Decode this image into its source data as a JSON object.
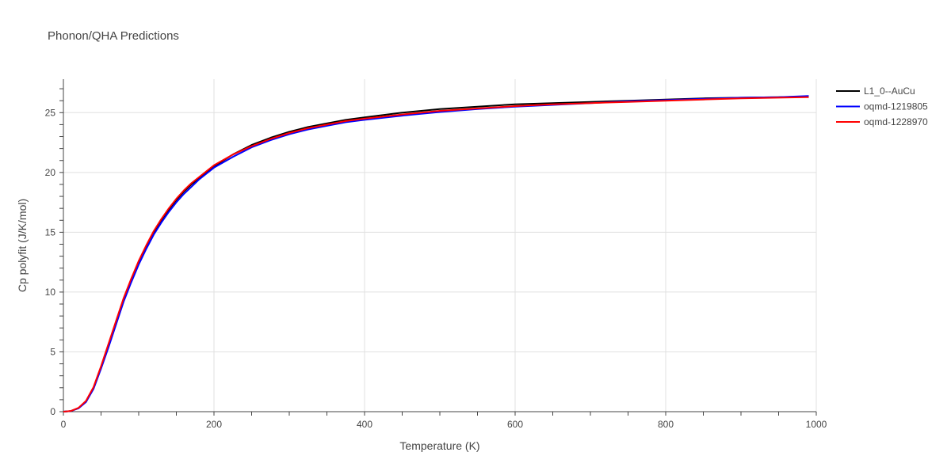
{
  "chart_data": {
    "type": "line",
    "title": "Phonon/QHA Predictions",
    "xlabel": "Temperature (K)",
    "ylabel": "Cp polyfit (J/K/mol)",
    "xlim": [
      0,
      1000
    ],
    "ylim": [
      0,
      27.8
    ],
    "xticks": [
      0,
      200,
      400,
      600,
      800,
      1000
    ],
    "yticks": [
      0,
      5,
      10,
      15,
      20,
      25
    ],
    "grid": true,
    "legend_position": "top-right",
    "series": [
      {
        "name": "L1_0--AuCu",
        "color": "#000000",
        "x": [
          0,
          10,
          20,
          30,
          40,
          50,
          60,
          70,
          80,
          90,
          100,
          110,
          120,
          130,
          140,
          150,
          160,
          170,
          180,
          190,
          200,
          225,
          250,
          275,
          300,
          325,
          350,
          375,
          400,
          450,
          500,
          550,
          600,
          650,
          700,
          750,
          800,
          850,
          900,
          950,
          990
        ],
        "y": [
          0,
          0.05,
          0.3,
          0.85,
          2.0,
          3.7,
          5.6,
          7.5,
          9.4,
          11.0,
          12.5,
          13.8,
          15.0,
          16.0,
          16.9,
          17.7,
          18.4,
          19.0,
          19.5,
          20.0,
          20.5,
          21.5,
          22.3,
          22.9,
          23.4,
          23.8,
          24.1,
          24.4,
          24.6,
          25.0,
          25.3,
          25.5,
          25.7,
          25.8,
          25.9,
          26.0,
          26.1,
          26.2,
          26.25,
          26.3,
          26.35
        ]
      },
      {
        "name": "oqmd-1219805",
        "color": "#0000ff",
        "x": [
          0,
          10,
          20,
          30,
          40,
          50,
          60,
          70,
          80,
          90,
          100,
          110,
          120,
          130,
          140,
          150,
          160,
          170,
          180,
          190,
          200,
          225,
          250,
          275,
          300,
          325,
          350,
          375,
          400,
          450,
          500,
          550,
          600,
          650,
          700,
          750,
          800,
          850,
          900,
          950,
          990
        ],
        "y": [
          0,
          0.05,
          0.28,
          0.8,
          1.9,
          3.6,
          5.4,
          7.3,
          9.2,
          10.8,
          12.3,
          13.6,
          14.8,
          15.8,
          16.7,
          17.5,
          18.2,
          18.8,
          19.4,
          19.9,
          20.4,
          21.3,
          22.1,
          22.7,
          23.2,
          23.6,
          23.9,
          24.2,
          24.4,
          24.75,
          25.05,
          25.3,
          25.5,
          25.65,
          25.8,
          25.95,
          26.05,
          26.15,
          26.25,
          26.3,
          26.4
        ]
      },
      {
        "name": "oqmd-1228970",
        "color": "#ff0000",
        "x": [
          0,
          10,
          20,
          30,
          40,
          50,
          60,
          70,
          80,
          90,
          100,
          110,
          120,
          130,
          140,
          150,
          160,
          170,
          180,
          190,
          200,
          225,
          250,
          275,
          300,
          325,
          350,
          375,
          400,
          450,
          500,
          550,
          600,
          650,
          700,
          750,
          800,
          850,
          900,
          950,
          990
        ],
        "y": [
          0,
          0.06,
          0.32,
          0.9,
          2.05,
          3.8,
          5.7,
          7.6,
          9.5,
          11.1,
          12.6,
          13.9,
          15.1,
          16.1,
          17.0,
          17.8,
          18.5,
          19.1,
          19.6,
          20.1,
          20.6,
          21.5,
          22.2,
          22.8,
          23.3,
          23.7,
          24.0,
          24.3,
          24.5,
          24.85,
          25.15,
          25.35,
          25.55,
          25.7,
          25.8,
          25.9,
          26.0,
          26.1,
          26.2,
          26.25,
          26.3
        ]
      }
    ]
  }
}
